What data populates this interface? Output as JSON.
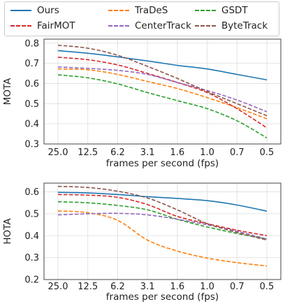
{
  "chart_data": [
    {
      "type": "line",
      "categories": [
        "25.0",
        "12.5",
        "6.2",
        "3.1",
        "1.6",
        "1.0",
        "0.7",
        "0.5"
      ],
      "xlabel": "frames per second (fps)",
      "ylabel": "MOTA",
      "ylim": [
        0.3,
        0.82
      ],
      "yticks": [
        "0.3",
        "0.4",
        "0.5",
        "0.6",
        "0.7",
        "0.8"
      ],
      "grid": true,
      "series": [
        {
          "name": "Ours",
          "color": "#1f77b4",
          "dash": "solid",
          "values": [
            0.763,
            0.75,
            0.732,
            0.712,
            0.69,
            0.672,
            0.645,
            0.618
          ]
        },
        {
          "name": "TraDeS",
          "color": "#ff7f0e",
          "dash": "dashed",
          "values": [
            0.672,
            0.668,
            0.645,
            0.61,
            0.575,
            0.53,
            0.48,
            0.425
          ]
        },
        {
          "name": "GSDT",
          "color": "#2ca02c",
          "dash": "dashed",
          "values": [
            0.643,
            0.628,
            0.598,
            0.555,
            0.515,
            0.475,
            0.415,
            0.33
          ]
        },
        {
          "name": "FairMOT",
          "color": "#d62728",
          "dash": "dashed",
          "values": [
            0.73,
            0.718,
            0.692,
            0.65,
            0.605,
            0.555,
            0.475,
            0.38
          ]
        },
        {
          "name": "CenterTrack",
          "color": "#9467bd",
          "dash": "dashed",
          "values": [
            0.682,
            0.675,
            0.665,
            0.645,
            0.605,
            0.565,
            0.518,
            0.46
          ]
        },
        {
          "name": "ByteTrack",
          "color": "#8c564b",
          "dash": "dashed",
          "values": [
            0.79,
            0.775,
            0.74,
            0.685,
            0.625,
            0.56,
            0.5,
            0.44
          ]
        }
      ]
    },
    {
      "type": "line",
      "categories": [
        "25.0",
        "12.5",
        "6.2",
        "3.1",
        "1.6",
        "1.0",
        "0.7",
        "0.5"
      ],
      "xlabel": "frames per second (fps)",
      "ylabel": "HOTA",
      "ylim": [
        0.2,
        0.64
      ],
      "yticks": [
        "0.2",
        "0.3",
        "0.4",
        "0.5",
        "0.6"
      ],
      "grid": true,
      "series": [
        {
          "name": "Ours",
          "color": "#1f77b4",
          "dash": "solid",
          "values": [
            0.598,
            0.595,
            0.588,
            0.578,
            0.57,
            0.56,
            0.54,
            0.512
          ]
        },
        {
          "name": "TraDeS",
          "color": "#ff7f0e",
          "dash": "dashed",
          "values": [
            0.513,
            0.505,
            0.47,
            0.38,
            0.33,
            0.298,
            0.277,
            0.262
          ]
        },
        {
          "name": "GSDT",
          "color": "#2ca02c",
          "dash": "dashed",
          "values": [
            0.555,
            0.55,
            0.538,
            0.518,
            0.475,
            0.44,
            0.41,
            0.385
          ]
        },
        {
          "name": "FairMOT",
          "color": "#d62728",
          "dash": "dashed",
          "values": [
            0.588,
            0.585,
            0.575,
            0.542,
            0.488,
            0.455,
            0.425,
            0.4
          ]
        },
        {
          "name": "CenterTrack",
          "color": "#9467bd",
          "dash": "dashed",
          "values": [
            0.495,
            0.5,
            0.502,
            0.495,
            0.475,
            0.45,
            0.42,
            0.385
          ]
        },
        {
          "name": "ByteTrack",
          "color": "#8c564b",
          "dash": "dashed",
          "values": [
            0.625,
            0.62,
            0.603,
            0.572,
            0.518,
            0.455,
            0.415,
            0.38
          ]
        }
      ]
    }
  ],
  "legend": {
    "placement": "top",
    "items": [
      "Ours",
      "TraDeS",
      "GSDT",
      "FairMOT",
      "CenterTrack",
      "ByteTrack"
    ]
  }
}
